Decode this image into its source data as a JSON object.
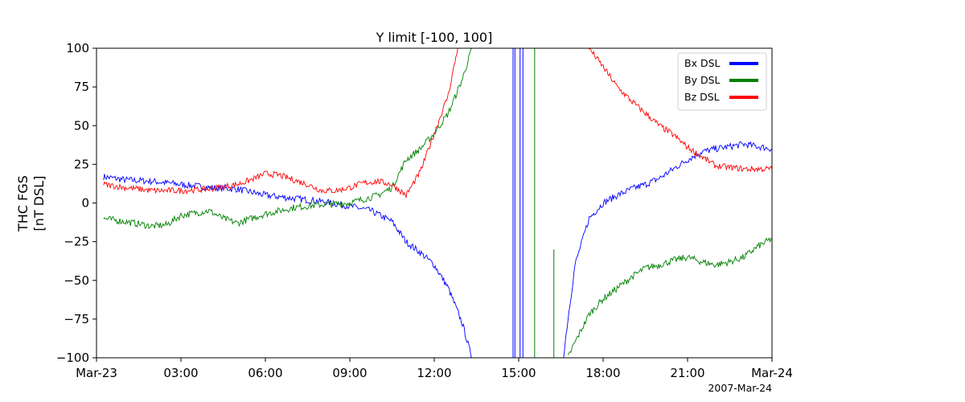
{
  "chart_data": {
    "type": "line",
    "title": "Y limit [-100, 100]",
    "ylabel_line1": "THC FGS",
    "ylabel_line2": "[nT DSL]",
    "date_label": "2007-Mar-24",
    "xlim": [
      "2007-03-23T00:00",
      "2007-03-24T00:00"
    ],
    "ylim": [
      -100,
      100
    ],
    "x_ticks": [
      {
        "t": "2007-03-23T00:00",
        "label": "Mar-23"
      },
      {
        "t": "2007-03-23T03:00",
        "label": "03:00"
      },
      {
        "t": "2007-03-23T06:00",
        "label": "06:00"
      },
      {
        "t": "2007-03-23T09:00",
        "label": "09:00"
      },
      {
        "t": "2007-03-23T12:00",
        "label": "12:00"
      },
      {
        "t": "2007-03-23T15:00",
        "label": "15:00"
      },
      {
        "t": "2007-03-23T18:00",
        "label": "18:00"
      },
      {
        "t": "2007-03-23T21:00",
        "label": "21:00"
      },
      {
        "t": "2007-03-24T00:00",
        "label": "Mar-24"
      }
    ],
    "y_ticks": [
      {
        "v": 100,
        "label": "100"
      },
      {
        "v": 75,
        "label": "75"
      },
      {
        "v": 50,
        "label": "50"
      },
      {
        "v": 25,
        "label": "25"
      },
      {
        "v": 0,
        "label": "0"
      },
      {
        "v": -25,
        "label": "−25"
      },
      {
        "v": -50,
        "label": "−50"
      },
      {
        "v": -75,
        "label": "−75"
      },
      {
        "v": -100,
        "label": "−100"
      }
    ],
    "grid": false,
    "legend_position": "top-right",
    "series": [
      {
        "name": "Bx DSL",
        "color": "#0000ff",
        "points": [
          [
            "2007-03-23T00:15",
            17
          ],
          [
            "2007-03-23T01:00",
            15
          ],
          [
            "2007-03-23T02:00",
            14
          ],
          [
            "2007-03-23T03:00",
            12
          ],
          [
            "2007-03-23T04:00",
            10
          ],
          [
            "2007-03-23T05:00",
            9
          ],
          [
            "2007-03-23T05:30",
            7
          ],
          [
            "2007-03-23T06:00",
            5
          ],
          [
            "2007-03-23T07:00",
            3
          ],
          [
            "2007-03-23T08:00",
            1
          ],
          [
            "2007-03-23T09:00",
            -2
          ],
          [
            "2007-03-23T09:45",
            -5
          ],
          [
            "2007-03-23T10:30",
            -12
          ],
          [
            "2007-03-23T11:00",
            -25
          ],
          [
            "2007-03-23T11:30",
            -32
          ],
          [
            "2007-03-23T12:00",
            -40
          ],
          [
            "2007-03-23T12:30",
            -55
          ],
          [
            "2007-03-23T13:00",
            -78
          ],
          [
            "2007-03-23T13:20",
            -100
          ]
        ],
        "segments_after_gap": [
          [
            [
              "2007-03-23T16:35",
              -100
            ],
            [
              "2007-03-23T16:45",
              -75
            ],
            [
              "2007-03-23T17:00",
              -40
            ],
            [
              "2007-03-23T17:30",
              -10
            ],
            [
              "2007-03-23T18:00",
              0
            ],
            [
              "2007-03-23T18:30",
              5
            ],
            [
              "2007-03-23T19:00",
              9
            ],
            [
              "2007-03-23T19:30",
              12
            ],
            [
              "2007-03-23T20:00",
              16
            ],
            [
              "2007-03-23T20:30",
              22
            ],
            [
              "2007-03-23T21:00",
              28
            ],
            [
              "2007-03-23T21:30",
              33
            ],
            [
              "2007-03-23T22:00",
              35
            ],
            [
              "2007-03-23T23:00",
              38
            ],
            [
              "2007-03-24T00:00",
              35
            ]
          ]
        ],
        "vertical_spikes": [
          "2007-03-23T14:48",
          "2007-03-23T14:52",
          "2007-03-23T15:03",
          "2007-03-23T15:09"
        ]
      },
      {
        "name": "By DSL",
        "color": "#008000",
        "points": [
          [
            "2007-03-23T00:15",
            -10
          ],
          [
            "2007-03-23T01:00",
            -12
          ],
          [
            "2007-03-23T02:00",
            -15
          ],
          [
            "2007-03-23T02:30",
            -14
          ],
          [
            "2007-03-23T03:00",
            -8
          ],
          [
            "2007-03-23T04:00",
            -5
          ],
          [
            "2007-03-23T04:30",
            -10
          ],
          [
            "2007-03-23T05:00",
            -13
          ],
          [
            "2007-03-23T05:30",
            -10
          ],
          [
            "2007-03-23T06:00",
            -7
          ],
          [
            "2007-03-23T07:00",
            -3
          ],
          [
            "2007-03-23T08:00",
            -1
          ],
          [
            "2007-03-23T09:00",
            0
          ],
          [
            "2007-03-23T10:00",
            5
          ],
          [
            "2007-03-23T10:30",
            10
          ],
          [
            "2007-03-23T11:00",
            28
          ],
          [
            "2007-03-23T11:30",
            35
          ],
          [
            "2007-03-23T12:00",
            45
          ],
          [
            "2007-03-23T12:30",
            58
          ],
          [
            "2007-03-23T13:00",
            80
          ],
          [
            "2007-03-23T13:20",
            100
          ]
        ],
        "segments_after_gap": [
          [
            [
              "2007-03-23T16:45",
              -100
            ],
            [
              "2007-03-23T17:00",
              -90
            ],
            [
              "2007-03-23T17:30",
              -72
            ],
            [
              "2007-03-23T18:00",
              -62
            ],
            [
              "2007-03-23T18:30",
              -55
            ],
            [
              "2007-03-23T19:00",
              -48
            ],
            [
              "2007-03-23T19:30",
              -42
            ],
            [
              "2007-03-23T20:00",
              -40
            ],
            [
              "2007-03-23T20:30",
              -37
            ],
            [
              "2007-03-23T21:00",
              -35
            ],
            [
              "2007-03-23T21:30",
              -38
            ],
            [
              "2007-03-23T22:00",
              -40
            ],
            [
              "2007-03-23T22:30",
              -38
            ],
            [
              "2007-03-23T23:00",
              -35
            ],
            [
              "2007-03-23T23:30",
              -28
            ],
            [
              "2007-03-24T00:00",
              -23
            ]
          ]
        ],
        "vertical_spikes": [
          "2007-03-23T15:34"
        ],
        "short_spikes": [
          [
            "2007-03-23T16:15",
            -100,
            -30
          ]
        ]
      },
      {
        "name": "Bz DSL",
        "color": "#ff0000",
        "points": [
          [
            "2007-03-23T00:15",
            12
          ],
          [
            "2007-03-23T01:00",
            10
          ],
          [
            "2007-03-23T02:00",
            8
          ],
          [
            "2007-03-23T03:00",
            8
          ],
          [
            "2007-03-23T04:00",
            9
          ],
          [
            "2007-03-23T05:00",
            12
          ],
          [
            "2007-03-23T05:30",
            15
          ],
          [
            "2007-03-23T06:00",
            19
          ],
          [
            "2007-03-23T06:30",
            18
          ],
          [
            "2007-03-23T07:00",
            15
          ],
          [
            "2007-03-23T07:30",
            12
          ],
          [
            "2007-03-23T08:00",
            8
          ],
          [
            "2007-03-23T08:30",
            8
          ],
          [
            "2007-03-23T09:00",
            10
          ],
          [
            "2007-03-23T09:30",
            13
          ],
          [
            "2007-03-23T10:00",
            14
          ],
          [
            "2007-03-23T10:30",
            12
          ],
          [
            "2007-03-23T11:00",
            5
          ],
          [
            "2007-03-23T11:30",
            20
          ],
          [
            "2007-03-23T12:00",
            45
          ],
          [
            "2007-03-23T12:30",
            70
          ],
          [
            "2007-03-23T12:50",
            100
          ]
        ],
        "segments_after_gap": [
          [
            [
              "2007-03-23T17:30",
              100
            ],
            [
              "2007-03-23T18:00",
              88
            ],
            [
              "2007-03-23T18:30",
              75
            ],
            [
              "2007-03-23T19:00",
              66
            ],
            [
              "2007-03-23T19:30",
              58
            ],
            [
              "2007-03-23T20:00",
              50
            ],
            [
              "2007-03-23T20:30",
              44
            ],
            [
              "2007-03-23T21:00",
              36
            ],
            [
              "2007-03-23T21:30",
              30
            ],
            [
              "2007-03-23T22:00",
              24
            ],
            [
              "2007-03-23T23:00",
              22
            ],
            [
              "2007-03-24T00:00",
              22
            ]
          ]
        ]
      }
    ]
  }
}
